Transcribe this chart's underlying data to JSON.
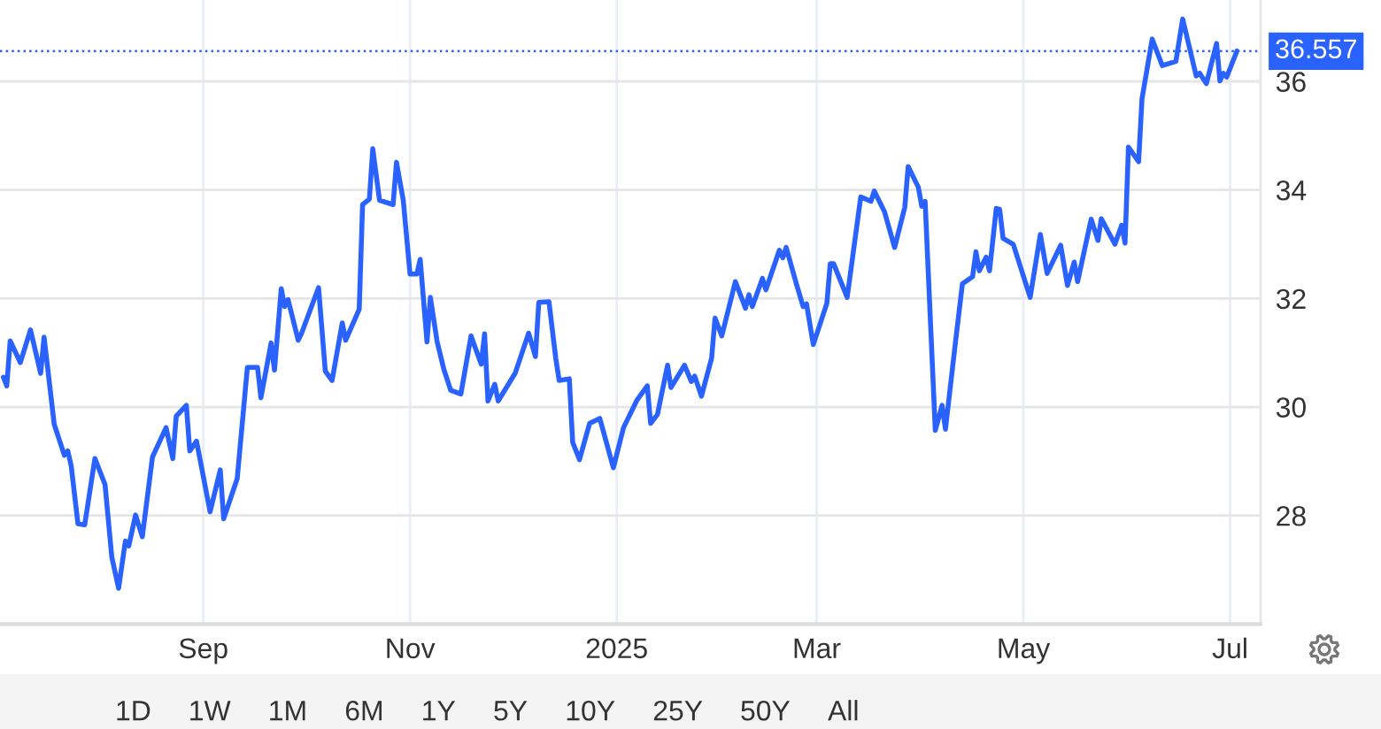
{
  "chart_data": {
    "type": "line",
    "color": "#2962ff",
    "x": [
      "2024-07-04",
      "2024-07-05",
      "2024-07-06",
      "2024-07-09",
      "2024-07-12",
      "2024-07-15",
      "2024-07-16",
      "2024-07-19",
      "2024-07-22",
      "2024-07-23",
      "2024-07-24",
      "2024-07-26",
      "2024-07-28",
      "2024-07-31",
      "2024-08-03",
      "2024-08-05",
      "2024-08-07",
      "2024-08-09",
      "2024-08-10",
      "2024-08-12",
      "2024-08-14",
      "2024-08-17",
      "2024-08-21",
      "2024-08-23",
      "2024-08-24",
      "2024-08-27",
      "2024-08-28",
      "2024-08-30",
      "2024-09-03",
      "2024-09-06",
      "2024-09-07",
      "2024-09-11",
      "2024-09-14",
      "2024-09-17",
      "2024-09-18",
      "2024-09-21",
      "2024-09-22",
      "2024-09-24",
      "2024-09-25",
      "2024-09-26",
      "2024-09-29",
      "2024-09-30",
      "2024-10-05",
      "2024-10-07",
      "2024-10-09",
      "2024-10-12",
      "2024-10-13",
      "2024-10-17",
      "2024-10-18",
      "2024-10-20",
      "2024-10-21",
      "2024-10-23",
      "2024-10-27",
      "2024-10-28",
      "2024-10-30",
      "2024-11-01",
      "2024-11-03",
      "2024-11-04",
      "2024-11-06",
      "2024-11-07",
      "2024-11-09",
      "2024-11-11",
      "2024-11-13",
      "2024-11-16",
      "2024-11-19",
      "2024-11-22",
      "2024-11-23",
      "2024-11-24",
      "2024-11-26",
      "2024-11-27",
      "2024-12-02",
      "2024-12-06",
      "2024-12-08",
      "2024-12-09",
      "2024-12-12",
      "2024-12-14",
      "2024-12-15",
      "2024-12-18",
      "2024-12-19",
      "2024-12-21",
      "2024-12-24",
      "2024-12-27",
      "2024-12-31",
      "2025-01-03",
      "2025-01-07",
      "2025-01-10",
      "2025-01-11",
      "2025-01-13",
      "2025-01-16",
      "2025-01-17",
      "2025-01-21",
      "2025-01-23",
      "2025-01-24",
      "2025-01-26",
      "2025-01-29",
      "2025-01-30",
      "2025-02-01",
      "2025-02-05",
      "2025-02-08",
      "2025-02-09",
      "2025-02-10",
      "2025-02-13",
      "2025-02-14",
      "2025-02-18",
      "2025-02-19",
      "2025-02-20",
      "2025-02-23",
      "2025-02-25",
      "2025-02-26",
      "2025-02-28",
      "2025-03-04",
      "2025-03-05",
      "2025-03-06",
      "2025-03-10",
      "2025-03-14",
      "2025-03-17",
      "2025-03-18",
      "2025-03-21",
      "2025-03-24",
      "2025-03-27",
      "2025-03-28",
      "2025-03-31",
      "2025-04-01",
      "2025-04-02",
      "2025-04-05",
      "2025-04-07",
      "2025-04-08",
      "2025-04-11",
      "2025-04-13",
      "2025-04-16",
      "2025-04-17",
      "2025-04-18",
      "2025-04-20",
      "2025-04-21",
      "2025-04-23",
      "2025-04-24",
      "2025-04-25",
      "2025-04-28",
      "2025-05-03",
      "2025-05-06",
      "2025-05-08",
      "2025-05-12",
      "2025-05-14",
      "2025-05-16",
      "2025-05-17",
      "2025-05-21",
      "2025-05-23",
      "2025-05-24",
      "2025-05-28",
      "2025-05-30",
      "2025-05-31",
      "2025-06-01",
      "2025-06-04",
      "2025-06-05",
      "2025-06-08",
      "2025-06-11",
      "2025-06-15",
      "2025-06-17",
      "2025-06-21",
      "2025-06-22",
      "2025-06-24",
      "2025-06-27",
      "2025-06-28",
      "2025-06-29",
      "2025-06-30",
      "2025-07-03"
    ],
    "values": [
      30.55,
      30.39,
      31.22,
      30.82,
      31.42,
      30.62,
      31.29,
      29.68,
      29.11,
      29.19,
      28.92,
      27.85,
      27.83,
      29.05,
      28.57,
      27.23,
      26.66,
      27.53,
      27.44,
      28.01,
      27.61,
      29.08,
      29.62,
      29.05,
      29.83,
      30.03,
      29.19,
      29.37,
      28.07,
      28.84,
      27.94,
      28.68,
      30.73,
      30.73,
      30.17,
      31.18,
      30.68,
      32.18,
      31.85,
      31.98,
      31.23,
      31.36,
      32.2,
      30.66,
      30.49,
      31.55,
      31.23,
      31.8,
      33.73,
      33.83,
      34.76,
      33.81,
      33.73,
      34.51,
      33.81,
      32.45,
      32.45,
      32.72,
      31.2,
      32.02,
      31.2,
      30.69,
      30.31,
      30.24,
      31.31,
      30.79,
      31.35,
      30.11,
      30.42,
      30.11,
      30.62,
      31.36,
      30.93,
      31.93,
      31.94,
      30.9,
      30.49,
      30.52,
      29.35,
      29.03,
      29.7,
      29.79,
      28.88,
      29.62,
      30.13,
      30.39,
      29.7,
      29.86,
      30.77,
      30.36,
      30.77,
      30.47,
      30.57,
      30.2,
      30.9,
      31.64,
      31.31,
      32.31,
      31.82,
      32.07,
      31.85,
      32.37,
      32.16,
      32.89,
      32.75,
      32.94,
      32.27,
      31.85,
      31.9,
      31.15,
      31.91,
      32.64,
      32.64,
      32.02,
      33.87,
      33.79,
      33.98,
      33.6,
      32.94,
      33.68,
      34.43,
      34.05,
      33.7,
      33.79,
      29.57,
      30.03,
      29.59,
      31.22,
      32.27,
      32.4,
      32.86,
      32.51,
      32.76,
      32.51,
      33.66,
      33.64,
      33.11,
      33.0,
      32.02,
      33.18,
      32.46,
      32.98,
      32.24,
      32.67,
      32.31,
      33.46,
      33.07,
      33.47,
      33.0,
      33.35,
      33.02,
      34.79,
      34.52,
      35.68,
      36.78,
      36.29,
      36.37,
      37.15,
      36.1,
      36.15,
      35.96,
      36.7,
      36.01,
      36.15,
      36.08,
      36.56
    ],
    "xlim": [
      "2024-07-03",
      "2025-07-10"
    ],
    "xticks": [
      {
        "value": "2024-09-01",
        "label": "Sep"
      },
      {
        "value": "2024-11-01",
        "label": "Nov"
      },
      {
        "value": "2025-01-01",
        "label": "2025"
      },
      {
        "value": "2025-03-01",
        "label": "Mar"
      },
      {
        "value": "2025-05-01",
        "label": "May"
      },
      {
        "value": "2025-07-01",
        "label": "Jul"
      }
    ],
    "ylim": [
      26,
      37.5
    ],
    "yticks": [
      28,
      30,
      32,
      34,
      36
    ],
    "grid": true,
    "ref_lines": [
      {
        "axis": "y",
        "value": 36.557,
        "label": "36.557",
        "color": "#2962ff",
        "line_style": "dotted"
      }
    ],
    "annotations": [
      "1D",
      "1W",
      "1M",
      "6M",
      "1Y",
      "5Y",
      "10Y",
      "25Y",
      "50Y",
      "All"
    ]
  }
}
